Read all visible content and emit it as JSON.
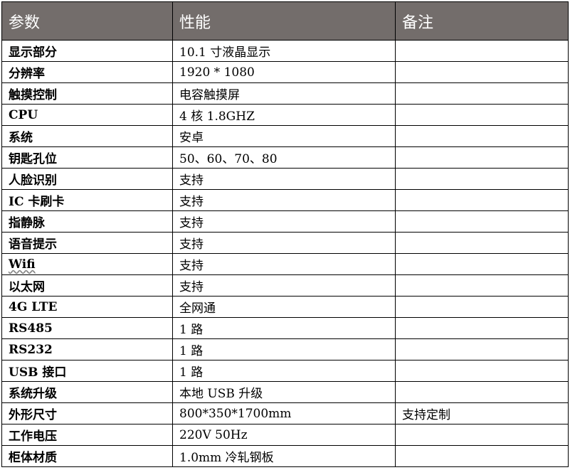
{
  "header": {
    "param": "参数",
    "performance": "性能",
    "notes": "备注"
  },
  "rows": [
    {
      "param": "显示部分",
      "value": "10.1 寸液晶显示",
      "note": ""
    },
    {
      "param": "分辨率",
      "value": "1920 * 1080",
      "note": ""
    },
    {
      "param": "触摸控制",
      "value": "电容触摸屏",
      "note": ""
    },
    {
      "param": "CPU",
      "value": "4 核 1.8GHZ",
      "note": ""
    },
    {
      "param": "系统",
      "value": "安卓",
      "note": ""
    },
    {
      "param": "钥匙孔位",
      "value": "50、60、70、80",
      "note": ""
    },
    {
      "param": "人脸识别",
      "value": "支持",
      "note": ""
    },
    {
      "param": "IC 卡刷卡",
      "value": "支持",
      "note": ""
    },
    {
      "param": "指静脉",
      "value": "支持",
      "note": ""
    },
    {
      "param": "语音提示",
      "value": "支持",
      "note": ""
    },
    {
      "param": "Wifi",
      "value": "支持",
      "note": ""
    },
    {
      "param": "以太网",
      "value": "支持",
      "note": ""
    },
    {
      "param": "4G LTE",
      "value": "全网通",
      "note": ""
    },
    {
      "param": "RS485",
      "value": "1 路",
      "note": ""
    },
    {
      "param": "RS232",
      "value": "1 路",
      "note": ""
    },
    {
      "param": "USB 接口",
      "value": "1 路",
      "note": ""
    },
    {
      "param": "系统升级",
      "value": "本地 USB 升级",
      "note": ""
    },
    {
      "param": "外形尺寸",
      "value": "800*350*1700mm",
      "note": "支持定制"
    },
    {
      "param": "工作电压",
      "value": "220V 50Hz",
      "note": ""
    },
    {
      "param": "柜体材质",
      "value": "1.0mm 冷轧钢板",
      "note": ""
    }
  ]
}
